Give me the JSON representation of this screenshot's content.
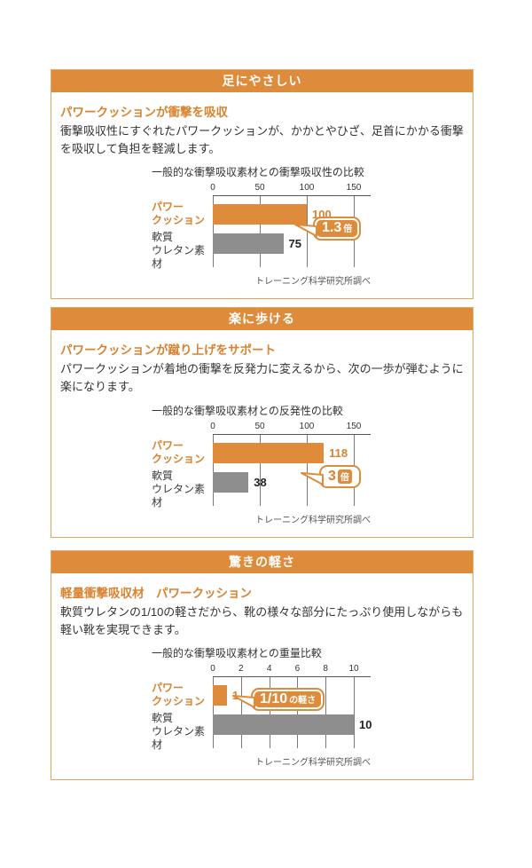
{
  "colors": {
    "accent": "#de8c3b",
    "accent_text": "#d9822f",
    "bar_gray": "#8e8e8e",
    "box_border": "#e2a462",
    "header_text": "#ffffff"
  },
  "sections": [
    {
      "header": "足にやさしい",
      "subtitle": "パワークッションが衝撃を吸収",
      "body": "衝撃吸収性にすぐれたパワークッションが、かかとやひざ、足首にかかる衝撃を吸収して負担を軽減します。",
      "chart": {
        "title": "一般的な衝撃吸収素材との衝撃吸収性の比較",
        "ticks": [
          0,
          50,
          100,
          150
        ],
        "categories": [
          "パワー\nクッション",
          "軟質\nウレタン素材"
        ],
        "values": [
          100,
          75
        ],
        "badge": {
          "label": "1.3倍",
          "main": "1.3",
          "sub": "倍",
          "style": "solid"
        },
        "source": "トレーニング科学研究所調べ"
      }
    },
    {
      "header": "楽に歩ける",
      "subtitle": "パワークッションが蹴り上げをサポート",
      "body": "パワークッションが着地の衝撃を反発力に変えるから、次の一歩が弾むように楽になります。",
      "chart": {
        "title": "一般的な衝撃吸収素材との反発性の比較",
        "ticks": [
          0,
          50,
          100,
          150
        ],
        "categories": [
          "パワー\nクッション",
          "軟質\nウレタン素材"
        ],
        "values": [
          118,
          38
        ],
        "badge": {
          "label": "3倍",
          "main": "3",
          "sub": "倍",
          "style": "outline"
        },
        "source": "トレーニング科学研究所調べ"
      }
    },
    {
      "header": "驚きの軽さ",
      "subtitle": "軽量衝撃吸収材　パワークッション",
      "body": "軟質ウレタンの1/10の軽さだから、靴の様々な部分にたっぷり使用しながらも軽い靴を実現できます。",
      "chart": {
        "title": "一般的な衝撃吸収素材との重量比較",
        "ticks": [
          0,
          2,
          4,
          6,
          8,
          10
        ],
        "categories": [
          "パワー\nクッション",
          "軟質\nウレタン素材"
        ],
        "values": [
          1,
          10
        ],
        "badge": {
          "label": "1/10の軽さ",
          "main": "1/10",
          "sub": "の軽さ",
          "style": "solid"
        },
        "source": "トレーニング科学研究所調べ"
      }
    }
  ],
  "chart_data": [
    {
      "type": "bar",
      "orientation": "horizontal",
      "title": "一般的な衝撃吸収素材との衝撃吸収性の比較",
      "categories": [
        "パワークッション",
        "軟質ウレタン素材"
      ],
      "values": [
        100,
        75
      ],
      "xlim": [
        0,
        150
      ],
      "tick_labels": [
        0,
        50,
        100,
        150
      ],
      "annotation": "1.3倍",
      "source": "トレーニング科学研究所調べ",
      "grid": true,
      "legend": false
    },
    {
      "type": "bar",
      "orientation": "horizontal",
      "title": "一般的な衝撃吸収素材との反発性の比較",
      "categories": [
        "パワークッション",
        "軟質ウレタン素材"
      ],
      "values": [
        118,
        38
      ],
      "xlim": [
        0,
        150
      ],
      "tick_labels": [
        0,
        50,
        100,
        150
      ],
      "annotation": "3倍",
      "source": "トレーニング科学研究所調べ",
      "grid": true,
      "legend": false
    },
    {
      "type": "bar",
      "orientation": "horizontal",
      "title": "一般的な衝撃吸収素材との重量比較",
      "categories": [
        "パワークッション",
        "軟質ウレタン素材"
      ],
      "values": [
        1,
        10
      ],
      "xlim": [
        0,
        10
      ],
      "tick_labels": [
        0,
        2,
        4,
        6,
        8,
        10
      ],
      "annotation": "1/10の軽さ",
      "source": "トレーニング科学研究所調べ",
      "grid": true,
      "legend": false
    }
  ]
}
